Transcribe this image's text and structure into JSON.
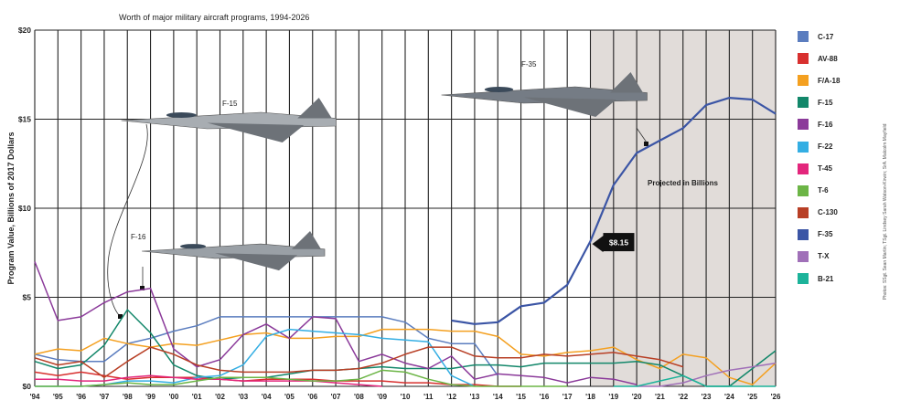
{
  "chart_data": {
    "type": "line",
    "title": "Worth of major military aircraft programs, 1994-2026",
    "ylabel": "Program Value, Billions of 2017 Dollars",
    "xlabel": "",
    "ylim": [
      0,
      20
    ],
    "y_ticks": [
      0,
      5,
      10,
      15,
      20
    ],
    "y_tick_labels": [
      "$0",
      "$5",
      "$10",
      "$15",
      "$20"
    ],
    "x_labels": [
      "'94",
      "'95",
      "'96",
      "'97",
      "'98",
      "'99",
      "'00",
      "'01",
      "'02",
      "'03",
      "'04",
      "'05",
      "'06",
      "'07",
      "'08",
      "'09",
      "'10",
      "'11",
      "'12",
      "'13",
      "'14",
      "'15",
      "'16",
      "'17",
      "'18",
      "'19",
      "'20",
      "'21",
      "'22",
      "'23",
      "'24",
      "'25",
      "'26"
    ],
    "projected_range": [
      2018,
      2026
    ],
    "projected_label": "Projected in Billions",
    "series": [
      {
        "name": "C-17",
        "color": "#5b7dbf",
        "x": [
          1994,
          1995,
          1996,
          1997,
          1998,
          1999,
          2000,
          2001,
          2002,
          2003,
          2004,
          2005,
          2006,
          2007,
          2008,
          2009,
          2010,
          2011,
          2012,
          2013,
          2014
        ],
        "values": [
          1.8,
          1.5,
          1.4,
          1.4,
          2.4,
          2.7,
          3.1,
          3.4,
          3.9,
          3.9,
          3.9,
          3.9,
          3.9,
          3.9,
          3.9,
          3.9,
          3.6,
          2.7,
          2.4,
          2.4,
          0.6
        ]
      },
      {
        "name": "AV-88",
        "color": "#d8302f",
        "x": [
          1994,
          1995,
          1996,
          1997,
          1998,
          1999,
          2000,
          2001,
          2002,
          2003,
          2004,
          2005,
          2006,
          2007,
          2008,
          2009,
          2010,
          2011,
          2012,
          2013,
          2014,
          2015
        ],
        "values": [
          0.8,
          0.6,
          0.8,
          0.6,
          0.4,
          0.5,
          0.5,
          0.5,
          0.4,
          0.3,
          0.4,
          0.4,
          0.4,
          0.3,
          0.3,
          0.3,
          0.2,
          0.2,
          0.1,
          0.1,
          0.0,
          0.0
        ]
      },
      {
        "name": "F/A-18",
        "color": "#f4a020",
        "x": [
          1994,
          1995,
          1996,
          1997,
          1998,
          1999,
          2000,
          2001,
          2002,
          2003,
          2004,
          2005,
          2006,
          2007,
          2008,
          2009,
          2010,
          2011,
          2012,
          2013,
          2014,
          2015,
          2016,
          2017,
          2018,
          2019,
          2020,
          2021,
          2022,
          2023,
          2024,
          2025,
          2026
        ],
        "values": [
          1.8,
          2.1,
          2.0,
          2.7,
          2.4,
          2.2,
          2.4,
          2.3,
          2.6,
          2.9,
          3.0,
          2.7,
          2.7,
          2.8,
          2.8,
          3.2,
          3.2,
          3.2,
          3.1,
          3.1,
          2.8,
          1.8,
          1.7,
          1.9,
          2.0,
          2.2,
          1.5,
          1.0,
          1.8,
          1.6,
          0.5,
          0.1,
          1.3
        ]
      },
      {
        "name": "F-15",
        "color": "#12876a",
        "x": [
          1994,
          1995,
          1996,
          1997,
          1998,
          1999,
          2000,
          2001,
          2002,
          2003,
          2004,
          2005,
          2006,
          2007,
          2008,
          2009,
          2010,
          2011,
          2012,
          2013,
          2014,
          2015,
          2016,
          2017,
          2018,
          2019,
          2020,
          2021,
          2022,
          2023,
          2024,
          2025,
          2026
        ],
        "values": [
          1.4,
          1.0,
          1.2,
          2.3,
          4.3,
          3.0,
          1.2,
          0.6,
          0.4,
          0.5,
          0.5,
          0.7,
          0.9,
          0.9,
          1.0,
          1.1,
          1.0,
          1.0,
          1.0,
          1.2,
          1.2,
          1.1,
          1.3,
          1.3,
          1.3,
          1.3,
          1.4,
          1.2,
          0.6,
          0.0,
          0.0,
          1.0,
          2.0
        ]
      },
      {
        "name": "F-16",
        "color": "#8b3a9a",
        "x": [
          1994,
          1995,
          1996,
          1997,
          1998,
          1999,
          2000,
          2001,
          2002,
          2003,
          2004,
          2005,
          2006,
          2007,
          2008,
          2009,
          2010,
          2011,
          2012,
          2013,
          2014,
          2015,
          2016,
          2017,
          2018,
          2019,
          2020
        ],
        "values": [
          7.0,
          3.7,
          3.9,
          4.7,
          5.3,
          5.5,
          2.1,
          1.1,
          1.5,
          2.9,
          3.5,
          2.7,
          3.9,
          3.8,
          1.4,
          1.8,
          1.3,
          1.0,
          1.7,
          0.4,
          0.7,
          0.6,
          0.5,
          0.2,
          0.5,
          0.4,
          0.1
        ]
      },
      {
        "name": "F-22",
        "color": "#34aee3",
        "x": [
          1994,
          1995,
          1996,
          1997,
          1998,
          1999,
          2000,
          2001,
          2002,
          2003,
          2004,
          2005,
          2006,
          2007,
          2008,
          2009,
          2010,
          2011,
          2012,
          2013
        ],
        "values": [
          0.0,
          0.0,
          0.0,
          0.1,
          0.3,
          0.3,
          0.2,
          0.5,
          0.6,
          1.2,
          2.8,
          3.2,
          3.1,
          3.0,
          2.9,
          2.7,
          2.6,
          2.5,
          0.6,
          0.0
        ]
      },
      {
        "name": "T-45",
        "color": "#e3267c",
        "x": [
          1994,
          1995,
          1996,
          1997,
          1998,
          1999,
          2000,
          2001,
          2002,
          2003,
          2004,
          2005,
          2006,
          2007,
          2008,
          2009
        ],
        "values": [
          0.4,
          0.4,
          0.3,
          0.3,
          0.5,
          0.6,
          0.5,
          0.4,
          0.4,
          0.3,
          0.3,
          0.3,
          0.3,
          0.2,
          0.1,
          0.0
        ]
      },
      {
        "name": "T-6",
        "color": "#6cb546",
        "x": [
          1994,
          1995,
          1996,
          1997,
          1998,
          1999,
          2000,
          2001,
          2002,
          2003,
          2004,
          2005,
          2006,
          2007,
          2008,
          2009,
          2010,
          2011,
          2012,
          2013,
          2014,
          2015,
          2016,
          2017
        ],
        "values": [
          0.0,
          0.0,
          0.0,
          0.1,
          0.2,
          0.1,
          0.1,
          0.3,
          0.5,
          0.5,
          0.5,
          0.4,
          0.3,
          0.3,
          0.4,
          0.9,
          0.8,
          0.4,
          0.1,
          0.0,
          0.0,
          0.0,
          0.0,
          0.0
        ]
      },
      {
        "name": "C-130",
        "color": "#b83f25",
        "x": [
          1994,
          1995,
          1996,
          1997,
          1998,
          1999,
          2000,
          2001,
          2002,
          2003,
          2004,
          2005,
          2006,
          2007,
          2008,
          2009,
          2010,
          2011,
          2012,
          2013,
          2014,
          2015,
          2016,
          2017,
          2018,
          2019,
          2020,
          2021,
          2022
        ],
        "values": [
          1.6,
          1.2,
          1.4,
          0.5,
          1.4,
          2.2,
          1.8,
          1.2,
          0.9,
          0.8,
          0.8,
          0.8,
          0.9,
          0.9,
          1.0,
          1.3,
          1.8,
          2.2,
          2.2,
          1.7,
          1.6,
          1.6,
          1.8,
          1.7,
          1.8,
          1.9,
          1.7,
          1.5,
          1.1
        ]
      },
      {
        "name": "F-35",
        "color": "#3b55a5",
        "x": [
          2012,
          2013,
          2014,
          2015,
          2016,
          2017,
          2018,
          2019,
          2020,
          2021,
          2022,
          2023,
          2024,
          2025,
          2026
        ],
        "values": [
          3.7,
          3.5,
          3.6,
          4.5,
          4.7,
          5.7,
          8.15,
          11.3,
          13.1,
          13.8,
          14.5,
          15.8,
          16.2,
          16.1,
          15.3
        ]
      },
      {
        "name": "T-X",
        "color": "#a070b8",
        "x": [
          2020,
          2021,
          2022,
          2023,
          2024,
          2025,
          2026
        ],
        "values": [
          0.0,
          0.0,
          0.2,
          0.6,
          0.9,
          1.1,
          1.3
        ]
      },
      {
        "name": "B-21",
        "color": "#1cb39a",
        "x": [
          2019,
          2020,
          2021,
          2022,
          2023,
          2024,
          2025,
          2026
        ],
        "values": [
          0.0,
          0.0,
          0.3,
          0.6,
          0.0,
          0.0,
          0.0,
          0.0
        ]
      }
    ],
    "callout": {
      "series": "F-35",
      "x": 2018,
      "value": 8.15,
      "label": "$8.15"
    },
    "image_labels": [
      "F-15",
      "F-16",
      "F-35"
    ]
  },
  "credit": "Photos: SSgt. Sean Martin; TSgt. Lindsey Sarah Watson-Kirwin; SrA. Malcolm Mayfield"
}
